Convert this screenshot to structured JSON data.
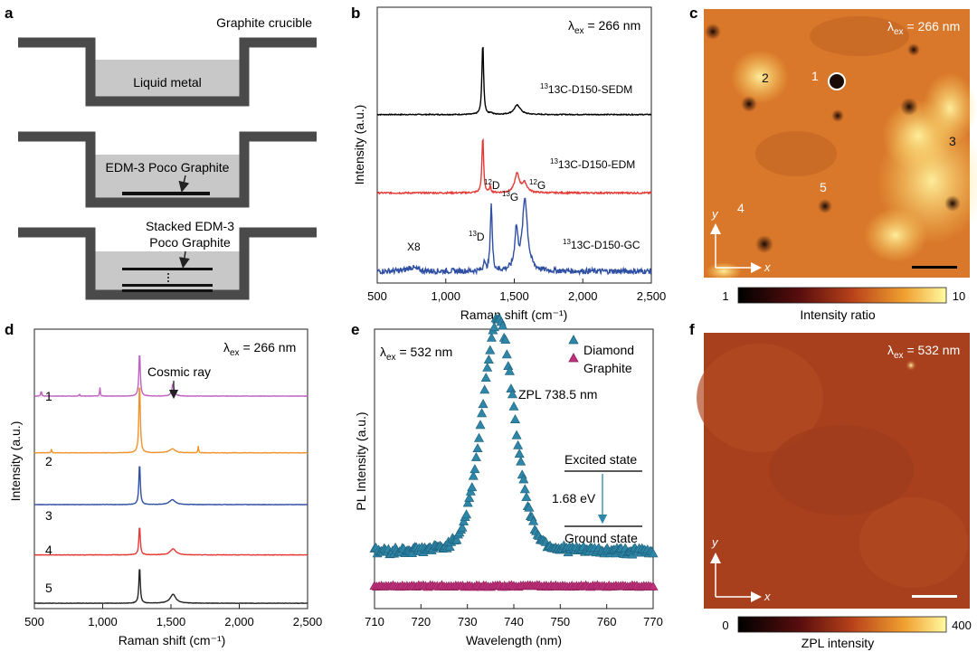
{
  "panels": {
    "a": {
      "label": "a",
      "title": "Graphite crucible",
      "box1_text": "Liquid metal",
      "box2_text": "EDM-3 Poco Graphite",
      "box3_text_line1": "Stacked EDM-3",
      "box3_text_line2": "Poco Graphite",
      "colors": {
        "crucible": "#4a4a4a",
        "liquid": "#c8c8c8"
      }
    },
    "b": {
      "label": "b",
      "excitation": "266 nm",
      "xlabel": "Raman shift (cm⁻¹)",
      "ylabel": "Intensity (a.u.)",
      "xticks": [
        "500",
        "1,000",
        "1,500",
        "2,000",
        "2,500"
      ],
      "series_labels": [
        "13C-D150-SEDM",
        "13C-D150-EDM",
        "13C-D150-GC"
      ],
      "peak_labels": [
        "12D",
        "13G",
        "12G",
        "13D"
      ],
      "scale_note": "X8"
    },
    "c": {
      "label": "c",
      "excitation": "266 nm",
      "spot_labels": [
        "1",
        "2",
        "3",
        "4",
        "5"
      ],
      "axis_x": "x",
      "axis_y": "y",
      "cbar_min": "1",
      "cbar_max": "10",
      "cbar_label": "Intensity ratio"
    },
    "d": {
      "label": "d",
      "excitation": "266 nm",
      "xlabel": "Raman shift (cm⁻¹)",
      "ylabel": "Intensity (a.u.)",
      "xticks": [
        "500",
        "1,000",
        "1,500",
        "2,000",
        "2,500"
      ],
      "annotation": "Cosmic ray",
      "series_labels": [
        "1",
        "2",
        "3",
        "4",
        "5"
      ]
    },
    "e": {
      "label": "e",
      "excitation": "532 nm",
      "xlabel": "Wavelength (nm)",
      "ylabel": "PL Intensity (a.u.)",
      "xticks": [
        "710",
        "720",
        "730",
        "740",
        "750",
        "760",
        "770"
      ],
      "legend": [
        "Diamond",
        "Graphite"
      ],
      "zpl_label": "ZPL 738.5 nm",
      "excited_state": "Excited state",
      "ground_state": "Ground state",
      "energy": "1.68 eV"
    },
    "f": {
      "label": "f",
      "excitation": "532 nm",
      "axis_x": "x",
      "axis_y": "y",
      "cbar_min": "0",
      "cbar_max": "400",
      "cbar_label": "ZPL intensity"
    }
  },
  "chart_data": [
    {
      "panel": "b",
      "type": "line",
      "xlabel": "Raman shift (cm⁻¹)",
      "ylabel": "Intensity (a.u.)",
      "xlim": [
        500,
        2500
      ],
      "series": [
        {
          "name": "13C-D150-SEDM",
          "color": "#000000",
          "offset": 2.0,
          "noise": 0.006,
          "peaks": [
            [
              1270,
              0.92,
              7
            ],
            [
              1522,
              0.12,
              28
            ],
            [
              1330,
              0.02,
              10
            ]
          ]
        },
        {
          "name": "13C-D150-EDM",
          "color": "#e53935",
          "offset": 1.0,
          "noise": 0.01,
          "peaks": [
            [
              1270,
              0.72,
              7
            ],
            [
              1325,
              0.08,
              6
            ],
            [
              1520,
              0.24,
              20
            ],
            [
              1575,
              0.12,
              22
            ]
          ]
        },
        {
          "name": "13C-D150-GC",
          "color": "#2f4fa3",
          "offset": 0.0,
          "noise": 0.035,
          "peaks": [
            [
              1280,
              0.15,
              6
            ],
            [
              1332,
              0.86,
              8
            ],
            [
              1515,
              0.5,
              14
            ],
            [
              1578,
              0.92,
              22
            ],
            [
              750,
              0.05,
              40
            ]
          ]
        }
      ]
    },
    {
      "panel": "d",
      "type": "line",
      "xlabel": "Raman shift (cm⁻¹)",
      "ylabel": "Intensity (a.u.)",
      "xlim": [
        500,
        2500
      ],
      "series": [
        {
          "name": "1",
          "color": "#c060c0",
          "offset": 4.4,
          "noise": 0.004,
          "peaks": [
            [
              1270,
              0.9,
              6
            ],
            [
              1515,
              0.25,
              10
            ],
            [
              550,
              0.12,
              3
            ],
            [
              980,
              0.18,
              3
            ],
            [
              830,
              0.05,
              3
            ]
          ]
        },
        {
          "name": "2",
          "color": "#f0922b",
          "offset": 3.25,
          "noise": 0.004,
          "peaks": [
            [
              1270,
              1.45,
              6
            ],
            [
              1510,
              0.08,
              25
            ],
            [
              625,
              0.08,
              3
            ],
            [
              1700,
              0.14,
              3
            ]
          ]
        },
        {
          "name": "3",
          "color": "#2f4fa3",
          "offset": 2.2,
          "noise": 0.004,
          "peaks": [
            [
              1270,
              0.85,
              6
            ],
            [
              1510,
              0.1,
              25
            ]
          ]
        },
        {
          "name": "4",
          "color": "#e53935",
          "offset": 1.18,
          "noise": 0.005,
          "peaks": [
            [
              1270,
              0.6,
              6
            ],
            [
              1515,
              0.12,
              25
            ]
          ]
        },
        {
          "name": "5",
          "color": "#222222",
          "offset": 0.2,
          "noise": 0.004,
          "peaks": [
            [
              1270,
              0.75,
              6
            ],
            [
              1515,
              0.18,
              25
            ]
          ]
        }
      ]
    },
    {
      "panel": "e",
      "type": "scatter",
      "xlabel": "Wavelength (nm)",
      "ylabel": "PL Intensity (a.u.)",
      "xlim": [
        707,
        778
      ],
      "series": [
        {
          "name": "Diamond",
          "color": "#2e86a8",
          "peak_center": 738.5,
          "peak_width": 4.2,
          "peak_height": 1.0,
          "baseline": 0.06
        },
        {
          "name": "Graphite",
          "color": "#c0307a",
          "baseline": 0.0
        }
      ]
    }
  ]
}
